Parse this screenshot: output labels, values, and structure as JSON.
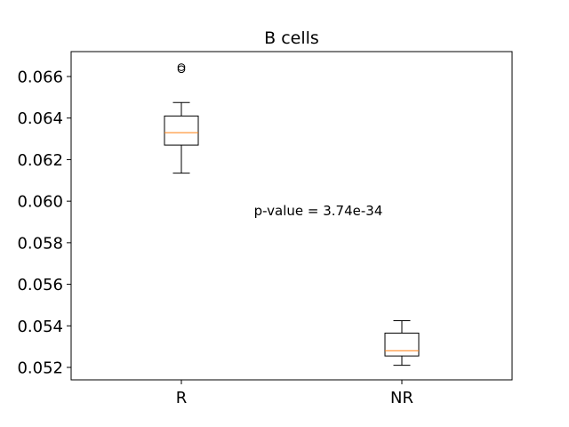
{
  "chart_data": {
    "type": "box",
    "title": "B cells",
    "xlabel": "",
    "ylabel": "",
    "ylim": [
      0.0514,
      0.0672
    ],
    "yticks": [
      0.052,
      0.054,
      0.056,
      0.058,
      0.06,
      0.062,
      0.064,
      0.066
    ],
    "ytick_labels": [
      "0.052",
      "0.054",
      "0.056",
      "0.058",
      "0.060",
      "0.062",
      "0.064",
      "0.066"
    ],
    "categories": [
      "R",
      "NR"
    ],
    "boxes": [
      {
        "category": "R",
        "whisker_low": 0.06135,
        "q1": 0.0627,
        "median": 0.0633,
        "q3": 0.0641,
        "whisker_high": 0.06475,
        "outliers": [
          0.06635,
          0.06645
        ]
      },
      {
        "category": "NR",
        "whisker_low": 0.0521,
        "q1": 0.05255,
        "median": 0.0528,
        "q3": 0.05365,
        "whisker_high": 0.05425,
        "outliers": []
      }
    ],
    "annotation": "p-value = 3.74e-34",
    "grid": false,
    "colors": {
      "box": "#000000",
      "median": "#ff7f0e",
      "outlier": "#000000"
    }
  }
}
